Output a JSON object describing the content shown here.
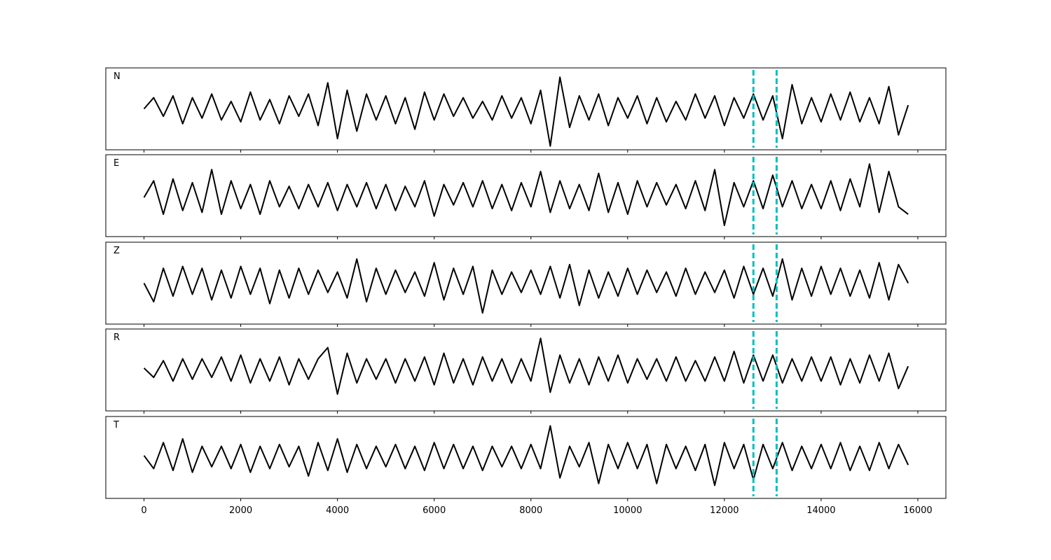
{
  "chart_data": [
    {
      "type": "line",
      "label": "N",
      "color": "#000000",
      "ylim": [
        -1.1,
        1.1
      ],
      "xlim": [
        -790,
        16580
      ],
      "vlines": [
        12600,
        13080
      ],
      "vline_color": "#00bfbf",
      "x": [
        0,
        200,
        400,
        600,
        800,
        1000,
        1200,
        1400,
        1600,
        1800,
        2000,
        2200,
        2400,
        2600,
        2800,
        3000,
        3200,
        3400,
        3600,
        3800,
        4000,
        4200,
        4400,
        4600,
        4800,
        5000,
        5200,
        5400,
        5600,
        5800,
        6000,
        6200,
        6400,
        6600,
        6800,
        7000,
        7200,
        7400,
        7600,
        7800,
        8000,
        8200,
        8400,
        8600,
        8800,
        9000,
        9200,
        9400,
        9600,
        9800,
        10000,
        10200,
        10400,
        10600,
        10800,
        11000,
        11200,
        11400,
        11600,
        11800,
        12000,
        12200,
        12400,
        12600,
        12800,
        13000,
        13200,
        13400,
        13600,
        13800,
        14000,
        14200,
        14400,
        14600,
        14800,
        15000,
        15200,
        15400,
        15600,
        15800
      ],
      "values": [
        0,
        0.3,
        -0.2,
        0.35,
        -0.4,
        0.3,
        -0.25,
        0.4,
        -0.3,
        0.2,
        -0.35,
        0.45,
        -0.3,
        0.25,
        -0.4,
        0.35,
        -0.2,
        0.4,
        -0.45,
        0.7,
        -0.8,
        0.5,
        -0.6,
        0.4,
        -0.3,
        0.35,
        -0.4,
        0.3,
        -0.55,
        0.45,
        -0.3,
        0.4,
        -0.2,
        0.3,
        -0.25,
        0.2,
        -0.3,
        0.35,
        -0.25,
        0.3,
        -0.4,
        0.5,
        -1.0,
        0.85,
        -0.5,
        0.35,
        -0.3,
        0.4,
        -0.45,
        0.3,
        -0.25,
        0.35,
        -0.4,
        0.3,
        -0.35,
        0.2,
        -0.3,
        0.4,
        -0.25,
        0.35,
        -0.45,
        0.3,
        -0.25,
        0.4,
        -0.3,
        0.35,
        -0.8,
        0.65,
        -0.4,
        0.3,
        -0.35,
        0.4,
        -0.3,
        0.45,
        -0.35,
        0.3,
        -0.4,
        0.6,
        -0.7,
        0.1
      ]
    },
    {
      "type": "line",
      "label": "E",
      "color": "#000000",
      "ylim": [
        -1.1,
        1.1
      ],
      "xlim": [
        -790,
        16580
      ],
      "vlines": [
        12600,
        13080
      ],
      "vline_color": "#00bfbf",
      "x": [
        0,
        200,
        400,
        600,
        800,
        1000,
        1200,
        1400,
        1600,
        1800,
        2000,
        2200,
        2400,
        2600,
        2800,
        3000,
        3200,
        3400,
        3600,
        3800,
        4000,
        4200,
        4400,
        4600,
        4800,
        5000,
        5200,
        5400,
        5600,
        5800,
        6000,
        6200,
        6400,
        6600,
        6800,
        7000,
        7200,
        7400,
        7600,
        7800,
        8000,
        8200,
        8400,
        8600,
        8800,
        9000,
        9200,
        9400,
        9600,
        9800,
        10000,
        10200,
        10400,
        10600,
        10800,
        11000,
        11200,
        11400,
        11600,
        11800,
        12000,
        12200,
        12400,
        12600,
        12800,
        13000,
        13200,
        13400,
        13600,
        13800,
        14000,
        14200,
        14400,
        14600,
        14800,
        15000,
        15200,
        15400,
        15600,
        15800
      ],
      "values": [
        -0.05,
        0.4,
        -0.5,
        0.45,
        -0.4,
        0.35,
        -0.45,
        0.7,
        -0.5,
        0.4,
        -0.35,
        0.3,
        -0.5,
        0.4,
        -0.3,
        0.25,
        -0.35,
        0.3,
        -0.3,
        0.35,
        -0.4,
        0.3,
        -0.3,
        0.35,
        -0.35,
        0.3,
        -0.4,
        0.25,
        -0.3,
        0.4,
        -0.55,
        0.3,
        -0.25,
        0.35,
        -0.3,
        0.4,
        -0.35,
        0.3,
        -0.4,
        0.35,
        -0.3,
        0.65,
        -0.45,
        0.4,
        -0.35,
        0.3,
        -0.4,
        0.6,
        -0.45,
        0.35,
        -0.5,
        0.4,
        -0.3,
        0.35,
        -0.25,
        0.3,
        -0.35,
        0.4,
        -0.4,
        0.7,
        -0.8,
        0.35,
        -0.3,
        0.4,
        -0.35,
        0.55,
        -0.3,
        0.4,
        -0.35,
        0.3,
        -0.35,
        0.4,
        -0.4,
        0.45,
        -0.3,
        0.85,
        -0.45,
        0.65,
        -0.3,
        -0.5
      ]
    },
    {
      "type": "line",
      "label": "Z",
      "color": "#000000",
      "ylim": [
        -1.1,
        1.1
      ],
      "xlim": [
        -790,
        16580
      ],
      "vlines": [
        12600,
        13080
      ],
      "vline_color": "#00bfbf",
      "x": [
        0,
        200,
        400,
        600,
        800,
        1000,
        1200,
        1400,
        1600,
        1800,
        2000,
        2200,
        2400,
        2600,
        2800,
        3000,
        3200,
        3400,
        3600,
        3800,
        4000,
        4200,
        4400,
        4600,
        4800,
        5000,
        5200,
        5400,
        5600,
        5800,
        6000,
        6200,
        6400,
        6600,
        6800,
        7000,
        7200,
        7400,
        7600,
        7800,
        8000,
        8200,
        8400,
        8600,
        8800,
        9000,
        9200,
        9400,
        9600,
        9800,
        10000,
        10200,
        10400,
        10600,
        10800,
        11000,
        11200,
        11400,
        11600,
        11800,
        12000,
        12200,
        12400,
        12600,
        12800,
        13000,
        13200,
        13400,
        13600,
        13800,
        14000,
        14200,
        14400,
        14600,
        14800,
        15000,
        15200,
        15400,
        15600,
        15800
      ],
      "values": [
        0,
        -0.5,
        0.4,
        -0.35,
        0.45,
        -0.3,
        0.4,
        -0.45,
        0.35,
        -0.4,
        0.45,
        -0.3,
        0.4,
        -0.55,
        0.35,
        -0.4,
        0.4,
        -0.3,
        0.35,
        -0.25,
        0.3,
        -0.4,
        0.65,
        -0.5,
        0.4,
        -0.3,
        0.35,
        -0.25,
        0.3,
        -0.35,
        0.55,
        -0.45,
        0.4,
        -0.3,
        0.45,
        -0.8,
        0.35,
        -0.3,
        0.3,
        -0.25,
        0.35,
        -0.3,
        0.45,
        -0.4,
        0.5,
        -0.6,
        0.35,
        -0.4,
        0.3,
        -0.35,
        0.4,
        -0.3,
        0.35,
        -0.25,
        0.3,
        -0.35,
        0.4,
        -0.3,
        0.3,
        -0.25,
        0.35,
        -0.4,
        0.45,
        -0.3,
        0.4,
        -0.35,
        0.65,
        -0.45,
        0.4,
        -0.35,
        0.45,
        -0.3,
        0.4,
        -0.35,
        0.35,
        -0.4,
        0.55,
        -0.45,
        0.5,
        0
      ]
    },
    {
      "type": "line",
      "label": "R",
      "color": "#000000",
      "ylim": [
        -1.1,
        1.1
      ],
      "xlim": [
        -790,
        16580
      ],
      "vlines": [
        12600,
        13080
      ],
      "vline_color": "#00bfbf",
      "x": [
        0,
        200,
        400,
        600,
        800,
        1000,
        1200,
        1400,
        1600,
        1800,
        2000,
        2200,
        2400,
        2600,
        2800,
        3000,
        3200,
        3400,
        3600,
        3800,
        4000,
        4200,
        4400,
        4600,
        4800,
        5000,
        5200,
        5400,
        5600,
        5800,
        6000,
        6200,
        6400,
        6600,
        6800,
        7000,
        7200,
        7400,
        7600,
        7800,
        8000,
        8200,
        8400,
        8600,
        8800,
        9000,
        9200,
        9400,
        9600,
        9800,
        10000,
        10200,
        10400,
        10600,
        10800,
        11000,
        11200,
        11400,
        11600,
        11800,
        12000,
        12200,
        12400,
        12600,
        12800,
        13000,
        13200,
        13400,
        13600,
        13800,
        14000,
        14200,
        14400,
        14600,
        14800,
        15000,
        15200,
        15400,
        15600,
        15800
      ],
      "values": [
        0.05,
        -0.2,
        0.25,
        -0.3,
        0.3,
        -0.25,
        0.3,
        -0.2,
        0.35,
        -0.3,
        0.4,
        -0.35,
        0.3,
        -0.3,
        0.35,
        -0.4,
        0.3,
        -0.25,
        0.3,
        0.6,
        -0.65,
        0.45,
        -0.35,
        0.3,
        -0.25,
        0.3,
        -0.35,
        0.3,
        -0.3,
        0.35,
        -0.4,
        0.45,
        -0.35,
        0.3,
        -0.4,
        0.35,
        -0.3,
        0.3,
        -0.35,
        0.3,
        -0.3,
        0.85,
        -0.6,
        0.4,
        -0.35,
        0.3,
        -0.4,
        0.35,
        -0.3,
        0.4,
        -0.35,
        0.3,
        -0.25,
        0.3,
        -0.3,
        0.35,
        -0.3,
        0.25,
        -0.3,
        0.35,
        -0.3,
        0.5,
        -0.35,
        0.4,
        -0.3,
        0.4,
        -0.35,
        0.3,
        -0.3,
        0.35,
        -0.3,
        0.35,
        -0.4,
        0.3,
        -0.35,
        0.4,
        -0.3,
        0.45,
        -0.5,
        0.1
      ]
    },
    {
      "type": "line",
      "label": "T",
      "color": "#000000",
      "ylim": [
        -1.1,
        1.1
      ],
      "xlim": [
        -790,
        16580
      ],
      "vlines": [
        12600,
        13080
      ],
      "vline_color": "#00bfbf",
      "xticks": [
        0,
        2000,
        4000,
        6000,
        8000,
        10000,
        12000,
        14000,
        16000
      ],
      "x": [
        0,
        200,
        400,
        600,
        800,
        1000,
        1200,
        1400,
        1600,
        1800,
        2000,
        2200,
        2400,
        2600,
        2800,
        3000,
        3200,
        3400,
        3600,
        3800,
        4000,
        4200,
        4400,
        4600,
        4800,
        5000,
        5200,
        5400,
        5600,
        5800,
        6000,
        6200,
        6400,
        6600,
        6800,
        7000,
        7200,
        7400,
        7600,
        7800,
        8000,
        8200,
        8400,
        8600,
        8800,
        9000,
        9200,
        9400,
        9600,
        9800,
        10000,
        10200,
        10400,
        10600,
        10800,
        11000,
        11200,
        11400,
        11600,
        11800,
        12000,
        12200,
        12400,
        12600,
        12800,
        13000,
        13200,
        13400,
        13600,
        13800,
        14000,
        14200,
        14400,
        14600,
        14800,
        15000,
        15200,
        15400,
        15600,
        15800
      ],
      "values": [
        0.05,
        -0.3,
        0.4,
        -0.35,
        0.5,
        -0.4,
        0.3,
        -0.25,
        0.3,
        -0.3,
        0.35,
        -0.4,
        0.3,
        -0.3,
        0.35,
        -0.25,
        0.3,
        -0.5,
        0.4,
        -0.35,
        0.5,
        -0.4,
        0.35,
        -0.3,
        0.3,
        -0.25,
        0.35,
        -0.3,
        0.3,
        -0.35,
        0.4,
        -0.3,
        0.35,
        -0.3,
        0.3,
        -0.35,
        0.3,
        -0.25,
        0.3,
        -0.3,
        0.35,
        -0.3,
        0.85,
        -0.55,
        0.3,
        -0.25,
        0.4,
        -0.7,
        0.35,
        -0.3,
        0.4,
        -0.3,
        0.35,
        -0.7,
        0.35,
        -0.3,
        0.3,
        -0.35,
        0.35,
        -0.75,
        0.4,
        -0.3,
        0.35,
        -0.6,
        0.35,
        -0.3,
        0.4,
        -0.35,
        0.3,
        -0.3,
        0.35,
        -0.3,
        0.4,
        -0.35,
        0.3,
        -0.35,
        0.4,
        -0.3,
        0.35,
        -0.2
      ]
    }
  ]
}
